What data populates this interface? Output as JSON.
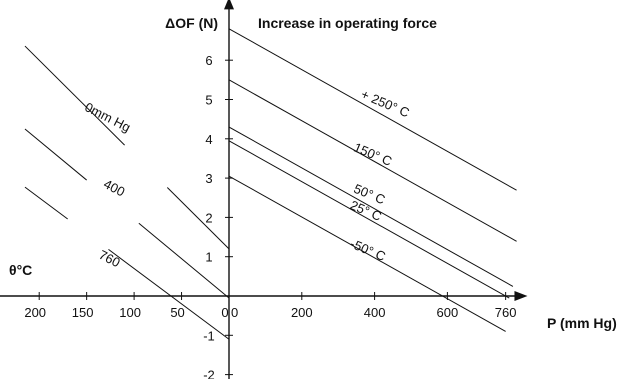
{
  "chart_data": {
    "type": "line",
    "title": "Increase in operating force",
    "ylabel": "ΔOF (N)",
    "xlabel": "P (mm Hg)",
    "left_axis_label": "θ°C",
    "ylim": [
      -2.2,
      7.6
    ],
    "xlim_right": [
      0,
      820
    ],
    "xlim_left": [
      220,
      0
    ],
    "grid": false,
    "y_ticks": [
      "-2",
      "-1",
      "1",
      "2",
      "3",
      "4",
      "5",
      "6"
    ],
    "y_tick_values": [
      -2,
      -1,
      1,
      2,
      3,
      4,
      5,
      6
    ],
    "x_right_ticks": [
      "0",
      "200",
      "400",
      "600",
      "760"
    ],
    "x_right_tick_values": [
      0,
      200,
      400,
      600,
      760
    ],
    "x_left_ticks": [
      "200",
      "150",
      "100",
      "50",
      "0"
    ],
    "x_left_tick_values": [
      200,
      150,
      100,
      50,
      0
    ],
    "right_series": [
      {
        "name": "+ 250° C",
        "intercept": 6.8,
        "slope": -0.0052,
        "x_end": 790,
        "label_x": 360,
        "label_y": 5.05,
        "label_angle": 23
      },
      {
        "name": "150° C",
        "intercept": 5.5,
        "slope": -0.0052,
        "x_end": 790,
        "label_x": 340,
        "label_y": 3.7,
        "label_angle": 23
      },
      {
        "name": "50° C",
        "intercept": 4.3,
        "slope": -0.0052,
        "x_end": 780,
        "label_x": 340,
        "label_y": 2.65,
        "label_angle": 23
      },
      {
        "name": "25° C",
        "intercept": 3.95,
        "slope": -0.0052,
        "x_end": 770,
        "label_x": 330,
        "label_y": 2.23,
        "label_angle": 23
      },
      {
        "name": "-50° C",
        "intercept": 3.05,
        "slope": -0.0052,
        "x_end": 760,
        "label_x": 330,
        "label_y": 1.25,
        "label_angle": 23
      }
    ],
    "left_series": [
      {
        "name": "0mm Hg",
        "intercept": 1.2,
        "slope": 0.024,
        "x_start": 215,
        "gap": [
          110,
          65
        ],
        "label_x": 130,
        "label_y": 4.45,
        "label_angle": -27
      },
      {
        "name": "400",
        "intercept": -0.05,
        "slope": 0.02,
        "x_start": 215,
        "gap": [
          150,
          95
        ],
        "label_x": 123,
        "label_y": 2.65,
        "label_angle": -27
      },
      {
        "name": "760",
        "intercept": -1.1,
        "slope": 0.018,
        "x_start": 215,
        "gap": [
          170,
          127
        ],
        "label_x": 128,
        "label_y": 0.85,
        "label_angle": -27
      }
    ]
  }
}
